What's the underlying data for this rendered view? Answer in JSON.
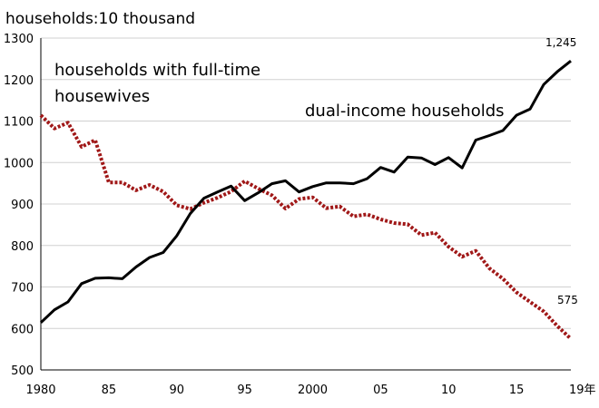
{
  "chart_data": {
    "type": "line",
    "ylabel": "households:10 thousand",
    "ylim": [
      500,
      1300
    ],
    "yticks": [
      500,
      600,
      700,
      800,
      900,
      1000,
      1100,
      1200,
      1300
    ],
    "xlim": [
      1980,
      2019
    ],
    "xticks": [
      {
        "x": 1980,
        "label": "1980"
      },
      {
        "x": 1985,
        "label": "85"
      },
      {
        "x": 1990,
        "label": "90"
      },
      {
        "x": 1995,
        "label": "95"
      },
      {
        "x": 2000,
        "label": "2000"
      },
      {
        "x": 2005,
        "label": "05"
      },
      {
        "x": 2010,
        "label": "10"
      },
      {
        "x": 2015,
        "label": "15"
      },
      {
        "x": 2019,
        "label": "19年"
      }
    ],
    "grid": "horizontal",
    "x": [
      1980,
      1981,
      1982,
      1983,
      1984,
      1985,
      1986,
      1987,
      1988,
      1989,
      1990,
      1991,
      1992,
      1993,
      1994,
      1995,
      1996,
      1997,
      1998,
      1999,
      2000,
      2001,
      2002,
      2003,
      2004,
      2005,
      2006,
      2007,
      2008,
      2009,
      2010,
      2011,
      2012,
      2013,
      2014,
      2015,
      2016,
      2017,
      2018,
      2019
    ],
    "series": [
      {
        "name": "households with full-time housewives",
        "label_lines": [
          "households with full-time",
          "housewives"
        ],
        "color": "#a01818",
        "style": "dotted",
        "end_label": "575",
        "values": [
          1114,
          1082,
          1096,
          1038,
          1054,
          952,
          952,
          933,
          946,
          930,
          897,
          888,
          903,
          915,
          930,
          955,
          937,
          921,
          889,
          912,
          916,
          890,
          894,
          870,
          875,
          863,
          854,
          851,
          825,
          831,
          797,
          773,
          787,
          745,
          720,
          687,
          664,
          641,
          606,
          575
        ]
      },
      {
        "name": "dual-income households",
        "label_lines": [
          "dual-income households"
        ],
        "color": "#000000",
        "style": "solid",
        "end_label": "1,245",
        "values": [
          614,
          645,
          664,
          708,
          721,
          722,
          720,
          748,
          771,
          783,
          823,
          877,
          914,
          929,
          943,
          908,
          927,
          949,
          956,
          929,
          942,
          951,
          951,
          949,
          961,
          988,
          977,
          1013,
          1011,
          995,
          1012,
          987,
          1054,
          1065,
          1077,
          1114,
          1129,
          1188,
          1219,
          1245
        ]
      }
    ]
  }
}
